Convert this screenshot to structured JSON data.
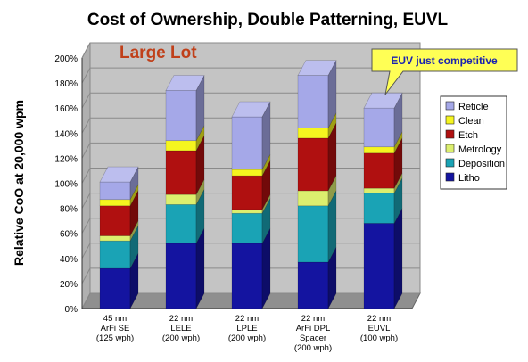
{
  "chart_data": {
    "type": "bar",
    "stacked": true,
    "title": "Cost of Ownership, Double Patterning, EUVL",
    "ylabel": "Relative CoO at 20,000 wpm",
    "ylim": [
      0,
      200
    ],
    "y_ticks": [
      "0%",
      "20%",
      "40%",
      "60%",
      "80%",
      "100%",
      "120%",
      "140%",
      "160%",
      "180%",
      "200%"
    ],
    "categories": [
      [
        "45 nm",
        "ArFi SE",
        "(125 wph)"
      ],
      [
        "22 nm",
        "LELE",
        "(200 wph)"
      ],
      [
        "22 nm",
        "LPLE",
        "(200 wph)"
      ],
      [
        "22 nm",
        "ArFi DPL",
        "Spacer",
        "(200 wph)"
      ],
      [
        "22 nm",
        "EUVL",
        "(100 wph)"
      ]
    ],
    "series": [
      {
        "name": "Litho",
        "color": "#1414a0",
        "values": [
          32,
          52,
          52,
          37,
          68
        ]
      },
      {
        "name": "Deposition",
        "color": "#1aa3b5",
        "values": [
          22,
          31,
          24,
          45,
          24
        ]
      },
      {
        "name": "Metrology",
        "color": "#dcef6e",
        "values": [
          4,
          8,
          3,
          12,
          4
        ]
      },
      {
        "name": "Etch",
        "color": "#b01010",
        "values": [
          24,
          35,
          27,
          42,
          28
        ]
      },
      {
        "name": "Clean",
        "color": "#f5f51f",
        "values": [
          5,
          8,
          5,
          8,
          5
        ]
      },
      {
        "name": "Reticle",
        "color": "#a5a8e8",
        "values": [
          14,
          40,
          42,
          42,
          31
        ]
      }
    ],
    "legend_order": [
      "Reticle",
      "Clean",
      "Etch",
      "Metrology",
      "Deposition",
      "Litho"
    ],
    "legend_position": "right",
    "annotation_label": "Large Lot",
    "callout": "EUV just competitive",
    "grid": true
  }
}
